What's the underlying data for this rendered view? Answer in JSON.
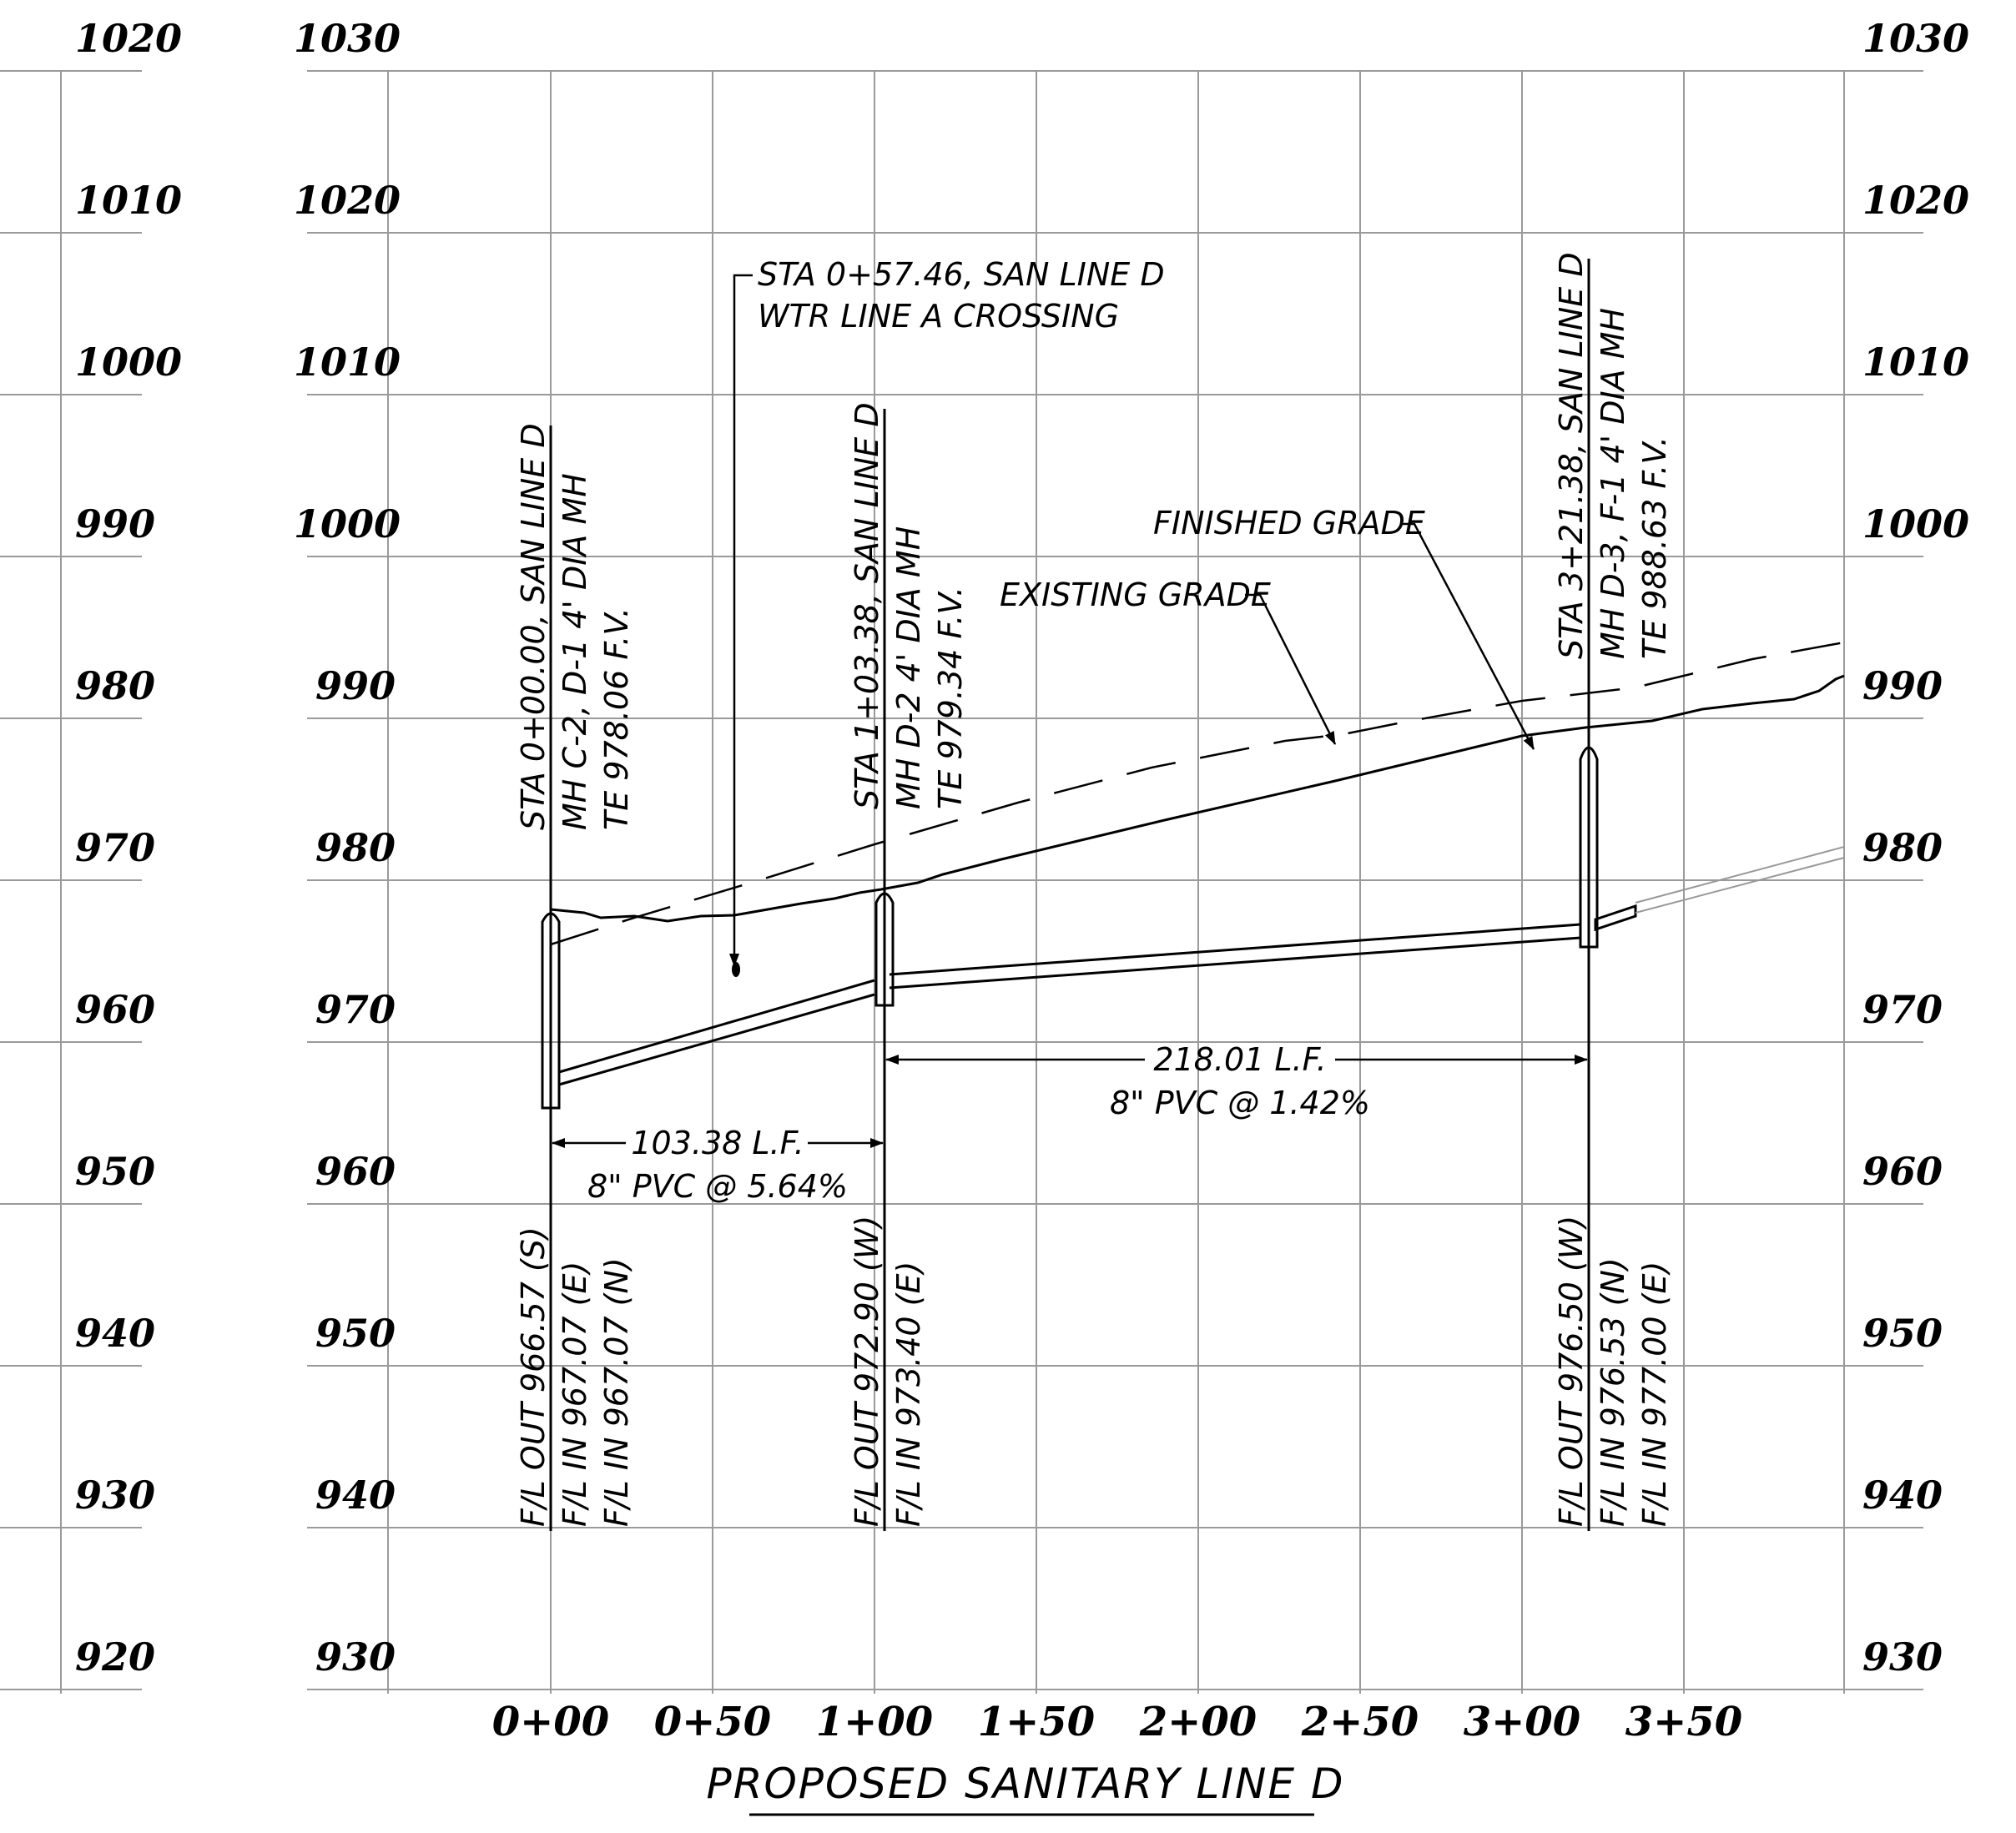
{
  "title": "PROPOSED SANITARY LINE D",
  "axes": {
    "outer_left_elevations": [
      "1020",
      "1010",
      "1000",
      "990",
      "980",
      "970",
      "960",
      "950",
      "940",
      "930",
      "920"
    ],
    "left_elevations": [
      "1030",
      "1020",
      "1010",
      "1000",
      "990",
      "980",
      "970",
      "960",
      "950",
      "940",
      "930"
    ],
    "right_elevations": [
      "1030",
      "1020",
      "1010",
      "1000",
      "990",
      "980",
      "970",
      "960",
      "950",
      "940",
      "930"
    ],
    "stations": [
      "0+00",
      "0+50",
      "1+00",
      "1+50",
      "2+00",
      "2+50",
      "3+00",
      "3+50"
    ]
  },
  "manholes": [
    {
      "station": 0,
      "labels": [
        "STA 0+00.00, SAN LINE D",
        "MH C-2, D-1 4' DIA MH",
        "TE 978.06 F.V."
      ],
      "flowlines": [
        "F/L OUT 966.57 (S)",
        "F/L IN 967.07 (E)",
        "F/L IN 967.07 (N)"
      ]
    },
    {
      "station": 103.38,
      "labels": [
        "STA 1+03.38, SAN LINE D",
        "MH D-2 4' DIA MH",
        "TE 979.34 F.V."
      ],
      "flowlines": [
        "F/L OUT 972.90 (W)",
        "F/L IN 973.40 (E)"
      ]
    },
    {
      "station": 321.38,
      "labels": [
        "STA 3+21.38, SAN LINE D",
        "MH D-3, F-1 4' DIA MH",
        "TE 988.63 F.V."
      ],
      "flowlines": [
        "F/L OUT 976.50 (W)",
        "F/L IN 976.53 (N)",
        "F/L IN 977.00 (E)"
      ]
    }
  ],
  "pipes": [
    {
      "length": "103.38 L.F.",
      "spec": "8\" PVC @ 5.64%"
    },
    {
      "length": "218.01 L.F.",
      "spec": "8\" PVC @ 1.42%"
    }
  ],
  "callouts": {
    "crossing": [
      "STA 0+57.46, SAN LINE D",
      "WTR LINE A CROSSING"
    ],
    "finished_grade": "FINISHED GRADE",
    "existing_grade": "EXISTING GRADE"
  }
}
